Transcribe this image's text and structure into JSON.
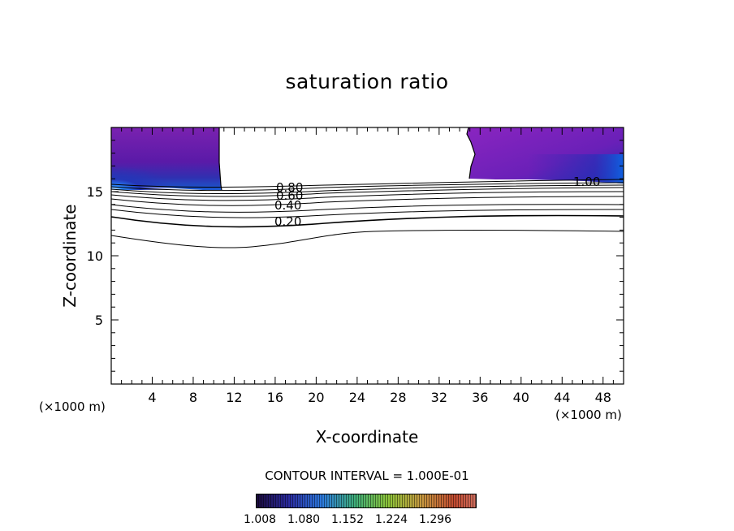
{
  "chart_data": {
    "type": "contour",
    "title": "saturation ratio",
    "xlabel": "X-coordinate",
    "ylabel": "Z-coordinate",
    "x_unit": "(×1000 m)",
    "y_unit": "(×1000 m)",
    "xlim": [
      0,
      50
    ],
    "ylim": [
      0,
      20
    ],
    "x_ticks": [
      4,
      8,
      12,
      16,
      20,
      24,
      28,
      32,
      36,
      40,
      44,
      48
    ],
    "y_ticks": [
      5,
      10,
      15
    ],
    "contour_interval_text": "CONTOUR INTERVAL = 1.000E-01",
    "contour_labels": [
      "0.80",
      "0.60",
      "0.40",
      "0.20",
      "1.00"
    ],
    "colorbar": {
      "ticks": [
        "1.008",
        "1.080",
        "1.152",
        "1.224",
        "1.296"
      ],
      "colors": [
        "#1a0a3a",
        "#2b2ba0",
        "#2d7be0",
        "#3fb07a",
        "#8ec63a",
        "#c89a40",
        "#c44a30",
        "#d07060"
      ]
    },
    "supersaturated_regions": [
      {
        "x_range": [
          0,
          10.8
        ],
        "z_range": [
          15.2,
          20
        ]
      },
      {
        "x_range": [
          34.9,
          50
        ],
        "z_range": [
          15.6,
          20
        ]
      }
    ]
  }
}
